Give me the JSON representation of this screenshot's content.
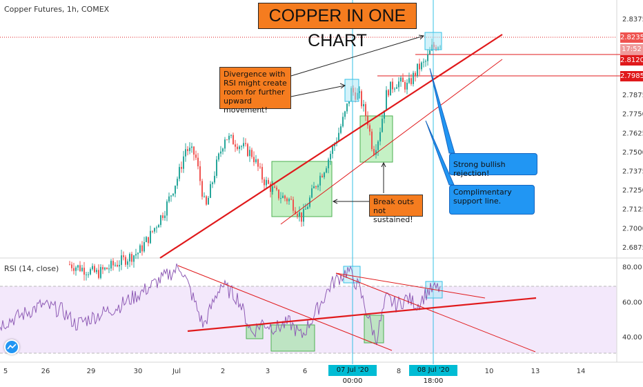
{
  "header": {
    "title": "Copper Futures, 1h, COMEX",
    "chart_title": "COPPER IN ONE CHART",
    "rsi_label": "RSI (14, close)"
  },
  "annotations": {
    "divergence": "Divergence with RSI might create room for further upward movement!",
    "breakouts": "Break outs not sustained!",
    "rejection": "Strong bullish rejection!",
    "support": "Complimentary support line."
  },
  "price_tags": {
    "last": "2.8235",
    "countdown": "17:52",
    "level_1": "2.8120",
    "level_2": "2.7985"
  },
  "date_tags": {
    "d1": "07 Jul '20  00:00",
    "d2": "08 Jul '20  18:00"
  },
  "colors": {
    "bull": "#26a69a",
    "bear": "#ef5350",
    "trend": "#e0191b",
    "rsi_line": "#8e5bb5",
    "rsi_band": "#f3e8fb",
    "vline": "#36c0e6",
    "zone": "#7ee07e"
  },
  "chart_data": {
    "type": "candlestick",
    "title": "COPPER IN ONE CHART",
    "symbol": "Copper Futures, 1h, COMEX",
    "price_axis": {
      "ticks": [
        "2.8375",
        "2.8250",
        "2.8120",
        "2.7985",
        "2.7875",
        "2.7750",
        "2.7625",
        "2.7500",
        "2.7375",
        "2.7250",
        "2.7125",
        "2.7000",
        "2.6875"
      ],
      "range": [
        2.682,
        2.846
      ]
    },
    "rsi_axis": {
      "ticks": [
        "80.00",
        "60.00",
        "40.00"
      ],
      "range": [
        25,
        85
      ],
      "bands": [
        30,
        70
      ]
    },
    "x_ticks": [
      "5",
      "26",
      "29",
      "30",
      "Jul",
      "2",
      "3",
      "6",
      "07 Jul '20  00:00",
      "8",
      "08 Jul '20  18:00",
      "10",
      "13",
      "14"
    ],
    "candles_approx": [
      {
        "t": "Jun 30",
        "low": 2.684,
        "high": 2.694
      },
      {
        "t": "Jul 1",
        "low": 2.693,
        "high": 2.757
      },
      {
        "t": "Jul 2",
        "low": 2.716,
        "high": 2.77
      },
      {
        "t": "Jul 3",
        "low": 2.705,
        "high": 2.743
      },
      {
        "t": "Jul 6",
        "low": 2.712,
        "high": 2.762
      },
      {
        "t": "Jul 7",
        "low": 2.748,
        "high": 2.792
      },
      {
        "t": "Jul 8",
        "low": 2.772,
        "high": 2.812
      },
      {
        "t": "Jul 9",
        "low": 2.805,
        "high": 2.825
      }
    ],
    "levels": [
      2.8235,
      2.812,
      2.7985
    ],
    "rsi_approx": [
      {
        "t": "Jun 25",
        "v": 45
      },
      {
        "t": "Jun 29",
        "v": 58
      },
      {
        "t": "Jul 1",
        "v": 78
      },
      {
        "t": "Jul 1b",
        "v": 45
      },
      {
        "t": "Jul 2",
        "v": 62
      },
      {
        "t": "Jul 3",
        "v": 40
      },
      {
        "t": "Jul 6",
        "v": 50
      },
      {
        "t": "Jul 7",
        "v": 76
      },
      {
        "t": "Jul 7b",
        "v": 38
      },
      {
        "t": "Jul 8",
        "v": 62
      },
      {
        "t": "Jul 9",
        "v": 66
      }
    ]
  }
}
